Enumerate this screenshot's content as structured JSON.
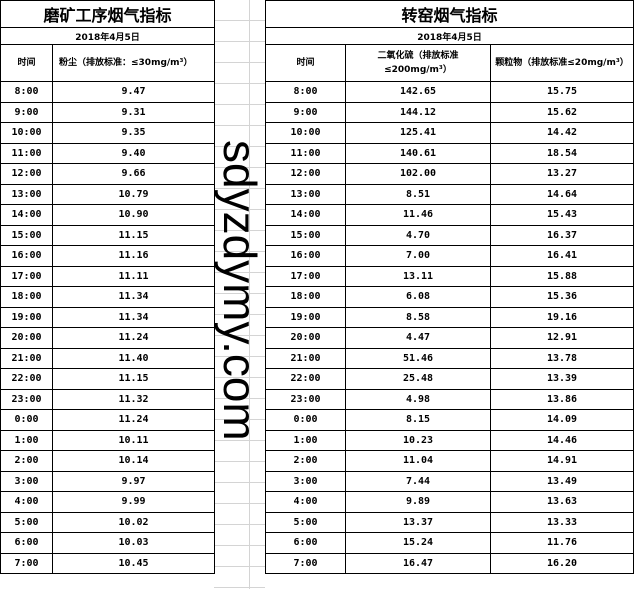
{
  "left": {
    "title": "磨矿工序烟气指标",
    "date": "2018年4月5日",
    "headers": [
      "时间",
      "粉尘（排放标准：≤30mg/m³）"
    ],
    "rows": [
      [
        "8:00",
        "9.47"
      ],
      [
        "9:00",
        "9.31"
      ],
      [
        "10:00",
        "9.35"
      ],
      [
        "11:00",
        "9.40"
      ],
      [
        "12:00",
        "9.66"
      ],
      [
        "13:00",
        "10.79"
      ],
      [
        "14:00",
        "10.90"
      ],
      [
        "15:00",
        "11.15"
      ],
      [
        "16:00",
        "11.16"
      ],
      [
        "17:00",
        "11.11"
      ],
      [
        "18:00",
        "11.34"
      ],
      [
        "19:00",
        "11.34"
      ],
      [
        "20:00",
        "11.24"
      ],
      [
        "21:00",
        "11.40"
      ],
      [
        "22:00",
        "11.15"
      ],
      [
        "23:00",
        "11.32"
      ],
      [
        "0:00",
        "11.24"
      ],
      [
        "1:00",
        "10.11"
      ],
      [
        "2:00",
        "10.14"
      ],
      [
        "3:00",
        "9.97"
      ],
      [
        "4:00",
        "9.99"
      ],
      [
        "5:00",
        "10.02"
      ],
      [
        "6:00",
        "10.03"
      ],
      [
        "7:00",
        "10.45"
      ]
    ]
  },
  "right": {
    "title": "转窑烟气指标",
    "date": "2018年4月5日",
    "headers": [
      "时间",
      "二氧化硫（排放标准≤200mg/m³）",
      "颗粒物（排放标准≤20mg/m³）"
    ],
    "rows": [
      [
        "8:00",
        "142.65",
        "15.75"
      ],
      [
        "9:00",
        "144.12",
        "15.62"
      ],
      [
        "10:00",
        "125.41",
        "14.42"
      ],
      [
        "11:00",
        "140.61",
        "18.54"
      ],
      [
        "12:00",
        "102.00",
        "13.27"
      ],
      [
        "13:00",
        "8.51",
        "14.64"
      ],
      [
        "14:00",
        "11.46",
        "15.43"
      ],
      [
        "15:00",
        "4.70",
        "16.37"
      ],
      [
        "16:00",
        "7.00",
        "16.41"
      ],
      [
        "17:00",
        "13.11",
        "15.88"
      ],
      [
        "18:00",
        "6.08",
        "15.36"
      ],
      [
        "19:00",
        "8.58",
        "19.16"
      ],
      [
        "20:00",
        "4.47",
        "12.91"
      ],
      [
        "21:00",
        "51.46",
        "13.78"
      ],
      [
        "22:00",
        "25.48",
        "13.39"
      ],
      [
        "23:00",
        "4.98",
        "13.86"
      ],
      [
        "0:00",
        "8.15",
        "14.09"
      ],
      [
        "1:00",
        "10.23",
        "14.46"
      ],
      [
        "2:00",
        "11.04",
        "14.91"
      ],
      [
        "3:00",
        "7.44",
        "13.49"
      ],
      [
        "4:00",
        "9.89",
        "13.63"
      ],
      [
        "5:00",
        "13.37",
        "13.33"
      ],
      [
        "6:00",
        "15.24",
        "11.76"
      ],
      [
        "7:00",
        "16.47",
        "16.20"
      ]
    ]
  },
  "watermark": "sdyzdymy.com"
}
